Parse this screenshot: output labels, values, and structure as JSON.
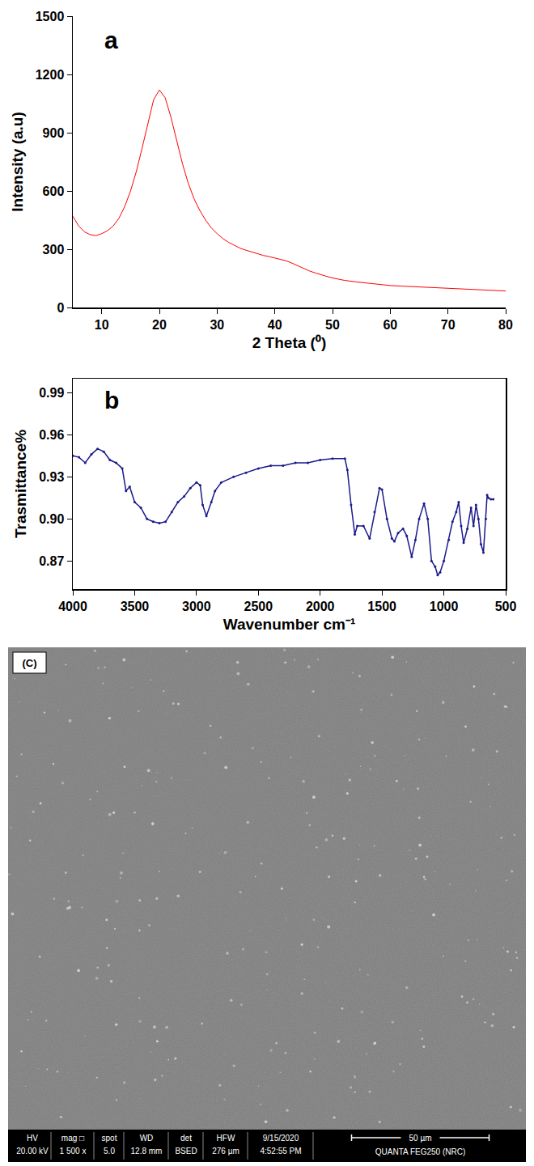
{
  "chart_data": [
    {
      "type": "line",
      "annotations": [
        "a"
      ],
      "x_label": "2 Theta (⁰)",
      "y_label": "Intensity (a.u)",
      "color": "#ff0000",
      "x": [
        5,
        6,
        7,
        8,
        9,
        10,
        11,
        12,
        13,
        14,
        15,
        16,
        17,
        18,
        19,
        20,
        21,
        22,
        23,
        24,
        25,
        26,
        27,
        28,
        29,
        30,
        31,
        32,
        33,
        34,
        35,
        36,
        37,
        38,
        39,
        40,
        41,
        42,
        43,
        44,
        45,
        46,
        47,
        48,
        49,
        50,
        52,
        54,
        56,
        58,
        60,
        62,
        64,
        66,
        68,
        70,
        72,
        74,
        76,
        78,
        80
      ],
      "values": [
        470,
        420,
        390,
        375,
        370,
        380,
        395,
        420,
        460,
        520,
        600,
        700,
        820,
        950,
        1070,
        1120,
        1080,
        980,
        860,
        740,
        640,
        560,
        500,
        450,
        410,
        380,
        355,
        335,
        320,
        305,
        295,
        285,
        275,
        268,
        262,
        255,
        248,
        240,
        228,
        215,
        200,
        188,
        178,
        168,
        160,
        152,
        140,
        132,
        125,
        118,
        113,
        110,
        107,
        104,
        101,
        99,
        96,
        93,
        91,
        88,
        85
      ],
      "xlim": [
        5,
        80
      ],
      "xticks": [
        10,
        20,
        30,
        40,
        50,
        60,
        70,
        80
      ],
      "ylim": [
        0,
        1500
      ],
      "yticks": [
        0,
        300,
        600,
        900,
        1200,
        1500
      ],
      "grid": false
    },
    {
      "type": "line",
      "annotations": [
        "b"
      ],
      "x_label": "Wavenumber cm⁻¹",
      "y_label": "Trasmittance%",
      "color": "#1a1a8c",
      "marker": "circle",
      "x": [
        4000,
        3950,
        3900,
        3850,
        3800,
        3750,
        3700,
        3650,
        3600,
        3570,
        3540,
        3500,
        3450,
        3400,
        3350,
        3300,
        3250,
        3200,
        3150,
        3100,
        3050,
        3000,
        2970,
        2950,
        2920,
        2880,
        2850,
        2800,
        2700,
        2600,
        2500,
        2400,
        2300,
        2200,
        2100,
        2000,
        1900,
        1800,
        1780,
        1750,
        1720,
        1700,
        1650,
        1600,
        1560,
        1520,
        1500,
        1460,
        1420,
        1400,
        1370,
        1330,
        1300,
        1260,
        1230,
        1200,
        1160,
        1130,
        1100,
        1070,
        1050,
        1030,
        1000,
        960,
        930,
        900,
        880,
        860,
        840,
        810,
        780,
        760,
        740,
        720,
        700,
        680,
        660,
        650,
        640,
        620,
        600
      ],
      "values": [
        0.945,
        0.944,
        0.94,
        0.946,
        0.95,
        0.948,
        0.942,
        0.94,
        0.936,
        0.92,
        0.923,
        0.912,
        0.908,
        0.9,
        0.898,
        0.897,
        0.898,
        0.905,
        0.912,
        0.916,
        0.922,
        0.926,
        0.924,
        0.91,
        0.902,
        0.912,
        0.92,
        0.926,
        0.93,
        0.933,
        0.936,
        0.938,
        0.938,
        0.94,
        0.94,
        0.942,
        0.943,
        0.943,
        0.935,
        0.91,
        0.889,
        0.895,
        0.895,
        0.886,
        0.905,
        0.922,
        0.921,
        0.9,
        0.886,
        0.884,
        0.89,
        0.893,
        0.888,
        0.873,
        0.885,
        0.9,
        0.911,
        0.9,
        0.87,
        0.866,
        0.86,
        0.862,
        0.87,
        0.885,
        0.898,
        0.905,
        0.912,
        0.895,
        0.883,
        0.893,
        0.908,
        0.895,
        0.91,
        0.9,
        0.882,
        0.876,
        0.9,
        0.917,
        0.915,
        0.914,
        0.914
      ],
      "xlim": [
        4000,
        500
      ],
      "xticks": [
        4000,
        3500,
        3000,
        2500,
        2000,
        1500,
        1000,
        500
      ],
      "ylim": [
        0.85,
        1.0
      ],
      "yticks": [
        0.87,
        {
          "value": 0.9,
          "label": "0.90"
        },
        0.93,
        0.96,
        0.99
      ],
      "grid": false
    }
  ],
  "image": {
    "label": "(C)",
    "info_bar": [
      {
        "header": "HV",
        "value": "20.00 kV"
      },
      {
        "header": "mag □",
        "value": "1 500 x"
      },
      {
        "header": "spot",
        "value": "5.0"
      },
      {
        "header": "WD",
        "value": "12.8 mm"
      },
      {
        "header": "det",
        "value": "BSED"
      },
      {
        "header": "HFW",
        "value": "276 µm"
      },
      {
        "header": "9/15/2020",
        "value": "4:52:55 PM"
      }
    ],
    "scale_bar": "50 µm",
    "instrument": "QUANTA FEG250 (NRC)"
  }
}
